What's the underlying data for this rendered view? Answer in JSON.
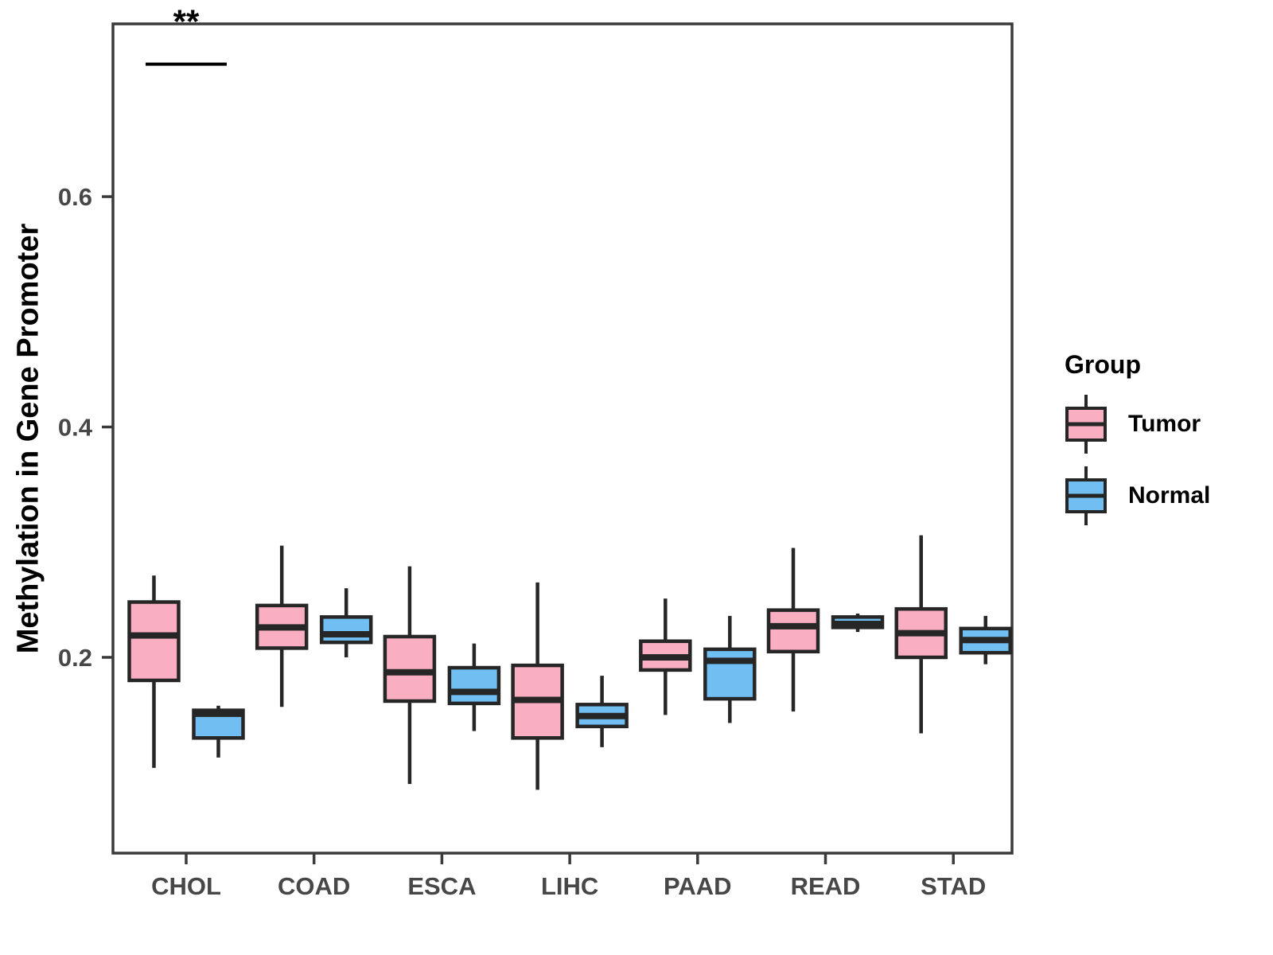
{
  "figure": {
    "y_axis_title": "Methylation in Gene Promoter",
    "legend": {
      "title": "Group",
      "items": [
        {
          "label": "Tumor",
          "color": "#FAAEC1"
        },
        {
          "label": "Normal",
          "color": "#70BEF2"
        }
      ]
    },
    "significance_label": "**"
  },
  "chart_data": {
    "type": "boxplot",
    "title": "",
    "xlabel": "",
    "ylabel": "Methylation in Gene Promoter",
    "categories": [
      "CHOL",
      "COAD",
      "ESCA",
      "LIHC",
      "PAAD",
      "READ",
      "STAD"
    ],
    "y_ticks": [
      0.2,
      0.4,
      0.6
    ],
    "ylim": [
      0.03,
      0.75
    ],
    "grid": false,
    "legend_position": "right",
    "ink_color": "#262626",
    "axis_color": "#3a3a3a",
    "series": [
      {
        "name": "Tumor",
        "color": "#FAAEC1",
        "boxes": [
          {
            "low": 0.104,
            "q1": 0.18,
            "med": 0.219,
            "q3": 0.248,
            "high": 0.271
          },
          {
            "low": 0.157,
            "q1": 0.208,
            "med": 0.226,
            "q3": 0.245,
            "high": 0.297
          },
          {
            "low": 0.09,
            "q1": 0.162,
            "med": 0.187,
            "q3": 0.218,
            "high": 0.279
          },
          {
            "low": 0.085,
            "q1": 0.13,
            "med": 0.163,
            "q3": 0.193,
            "high": 0.265
          },
          {
            "low": 0.15,
            "q1": 0.189,
            "med": 0.2,
            "q3": 0.214,
            "high": 0.251
          },
          {
            "low": 0.153,
            "q1": 0.205,
            "med": 0.227,
            "q3": 0.241,
            "high": 0.295
          },
          {
            "low": 0.134,
            "q1": 0.2,
            "med": 0.221,
            "q3": 0.242,
            "high": 0.306
          }
        ]
      },
      {
        "name": "Normal",
        "color": "#70BEF2",
        "boxes": [
          {
            "low": 0.113,
            "q1": 0.13,
            "med": 0.151,
            "q3": 0.154,
            "high": 0.158
          },
          {
            "low": 0.2,
            "q1": 0.213,
            "med": 0.22,
            "q3": 0.235,
            "high": 0.26
          },
          {
            "low": 0.136,
            "q1": 0.16,
            "med": 0.17,
            "q3": 0.191,
            "high": 0.212
          },
          {
            "low": 0.122,
            "q1": 0.14,
            "med": 0.149,
            "q3": 0.159,
            "high": 0.184
          },
          {
            "low": 0.143,
            "q1": 0.164,
            "med": 0.197,
            "q3": 0.207,
            "high": 0.236
          },
          {
            "low": 0.222,
            "q1": 0.226,
            "med": 0.229,
            "q3": 0.235,
            "high": 0.238
          },
          {
            "low": 0.194,
            "q1": 0.204,
            "med": 0.215,
            "q3": 0.225,
            "high": 0.236
          }
        ]
      }
    ],
    "annotations": [
      {
        "text": "**",
        "category": "CHOL",
        "line_y": 0.715,
        "text_y": 0.742
      }
    ]
  }
}
